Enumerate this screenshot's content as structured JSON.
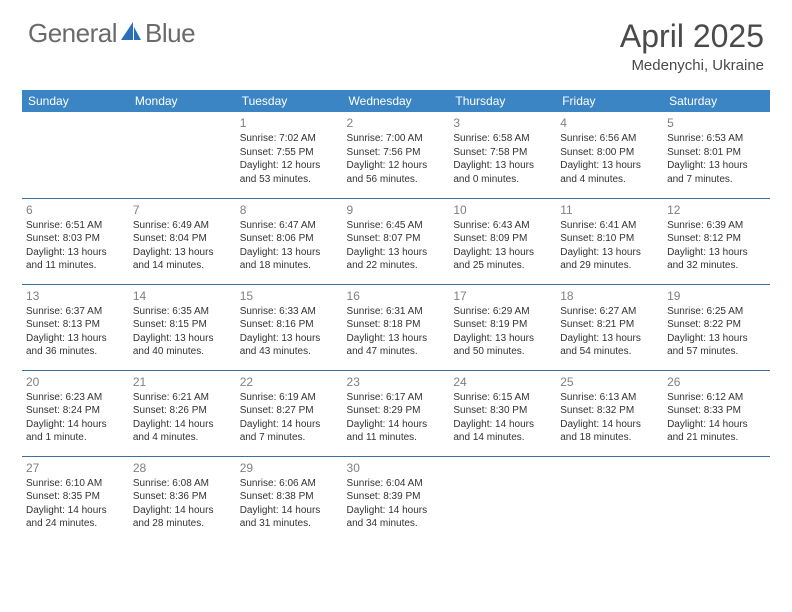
{
  "brand": {
    "part1": "General",
    "part2": "Blue"
  },
  "title": "April 2025",
  "location": "Medenychi, Ukraine",
  "headers": [
    "Sunday",
    "Monday",
    "Tuesday",
    "Wednesday",
    "Thursday",
    "Friday",
    "Saturday"
  ],
  "colors": {
    "header_bg": "#3b85c4",
    "header_text": "#ffffff",
    "row_divider": "#3b6fa0",
    "daynum": "#808080",
    "body_text": "#333333",
    "logo_gray": "#6a6a6a",
    "logo_blue": "#2a70b8"
  },
  "weeks": [
    [
      null,
      null,
      {
        "n": "1",
        "sr": "7:02 AM",
        "ss": "7:55 PM",
        "dl": "12 hours and 53 minutes."
      },
      {
        "n": "2",
        "sr": "7:00 AM",
        "ss": "7:56 PM",
        "dl": "12 hours and 56 minutes."
      },
      {
        "n": "3",
        "sr": "6:58 AM",
        "ss": "7:58 PM",
        "dl": "13 hours and 0 minutes."
      },
      {
        "n": "4",
        "sr": "6:56 AM",
        "ss": "8:00 PM",
        "dl": "13 hours and 4 minutes."
      },
      {
        "n": "5",
        "sr": "6:53 AM",
        "ss": "8:01 PM",
        "dl": "13 hours and 7 minutes."
      }
    ],
    [
      {
        "n": "6",
        "sr": "6:51 AM",
        "ss": "8:03 PM",
        "dl": "13 hours and 11 minutes."
      },
      {
        "n": "7",
        "sr": "6:49 AM",
        "ss": "8:04 PM",
        "dl": "13 hours and 14 minutes."
      },
      {
        "n": "8",
        "sr": "6:47 AM",
        "ss": "8:06 PM",
        "dl": "13 hours and 18 minutes."
      },
      {
        "n": "9",
        "sr": "6:45 AM",
        "ss": "8:07 PM",
        "dl": "13 hours and 22 minutes."
      },
      {
        "n": "10",
        "sr": "6:43 AM",
        "ss": "8:09 PM",
        "dl": "13 hours and 25 minutes."
      },
      {
        "n": "11",
        "sr": "6:41 AM",
        "ss": "8:10 PM",
        "dl": "13 hours and 29 minutes."
      },
      {
        "n": "12",
        "sr": "6:39 AM",
        "ss": "8:12 PM",
        "dl": "13 hours and 32 minutes."
      }
    ],
    [
      {
        "n": "13",
        "sr": "6:37 AM",
        "ss": "8:13 PM",
        "dl": "13 hours and 36 minutes."
      },
      {
        "n": "14",
        "sr": "6:35 AM",
        "ss": "8:15 PM",
        "dl": "13 hours and 40 minutes."
      },
      {
        "n": "15",
        "sr": "6:33 AM",
        "ss": "8:16 PM",
        "dl": "13 hours and 43 minutes."
      },
      {
        "n": "16",
        "sr": "6:31 AM",
        "ss": "8:18 PM",
        "dl": "13 hours and 47 minutes."
      },
      {
        "n": "17",
        "sr": "6:29 AM",
        "ss": "8:19 PM",
        "dl": "13 hours and 50 minutes."
      },
      {
        "n": "18",
        "sr": "6:27 AM",
        "ss": "8:21 PM",
        "dl": "13 hours and 54 minutes."
      },
      {
        "n": "19",
        "sr": "6:25 AM",
        "ss": "8:22 PM",
        "dl": "13 hours and 57 minutes."
      }
    ],
    [
      {
        "n": "20",
        "sr": "6:23 AM",
        "ss": "8:24 PM",
        "dl": "14 hours and 1 minute."
      },
      {
        "n": "21",
        "sr": "6:21 AM",
        "ss": "8:26 PM",
        "dl": "14 hours and 4 minutes."
      },
      {
        "n": "22",
        "sr": "6:19 AM",
        "ss": "8:27 PM",
        "dl": "14 hours and 7 minutes."
      },
      {
        "n": "23",
        "sr": "6:17 AM",
        "ss": "8:29 PM",
        "dl": "14 hours and 11 minutes."
      },
      {
        "n": "24",
        "sr": "6:15 AM",
        "ss": "8:30 PM",
        "dl": "14 hours and 14 minutes."
      },
      {
        "n": "25",
        "sr": "6:13 AM",
        "ss": "8:32 PM",
        "dl": "14 hours and 18 minutes."
      },
      {
        "n": "26",
        "sr": "6:12 AM",
        "ss": "8:33 PM",
        "dl": "14 hours and 21 minutes."
      }
    ],
    [
      {
        "n": "27",
        "sr": "6:10 AM",
        "ss": "8:35 PM",
        "dl": "14 hours and 24 minutes."
      },
      {
        "n": "28",
        "sr": "6:08 AM",
        "ss": "8:36 PM",
        "dl": "14 hours and 28 minutes."
      },
      {
        "n": "29",
        "sr": "6:06 AM",
        "ss": "8:38 PM",
        "dl": "14 hours and 31 minutes."
      },
      {
        "n": "30",
        "sr": "6:04 AM",
        "ss": "8:39 PM",
        "dl": "14 hours and 34 minutes."
      },
      null,
      null,
      null
    ]
  ],
  "labels": {
    "sunrise": "Sunrise: ",
    "sunset": "Sunset: ",
    "daylight": "Daylight: "
  }
}
